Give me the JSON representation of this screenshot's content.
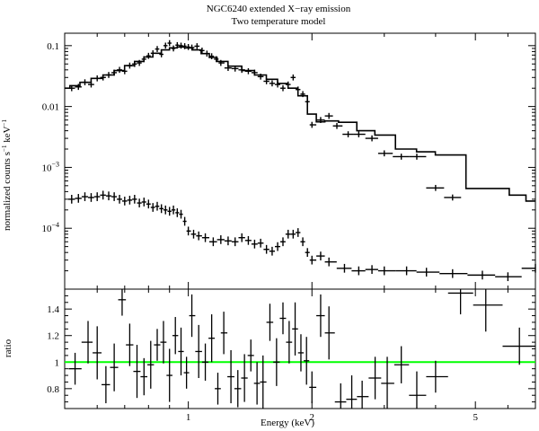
{
  "chart_data": {
    "type": "scatter",
    "title": "NGC6240 extended X−ray emission",
    "subtitle": "Two temperature model",
    "xlabel": "Energy (keV)",
    "x_scale": "log",
    "xlim": [
      0.5,
      7.0
    ],
    "x_ticks": [
      1,
      2,
      5
    ],
    "x_tick_labels": [
      "1",
      "2",
      "5"
    ],
    "grid": false,
    "top_panel": {
      "ylabel_parts": [
        "normalized counts s",
        "−1",
        " keV",
        "−1"
      ],
      "y_scale": "log",
      "ylim": [
        1e-05,
        0.16
      ],
      "y_tick_labels": [
        {
          "value": 0.1,
          "base": "0.1",
          "exp": ""
        },
        {
          "value": 0.01,
          "base": "0.01",
          "exp": ""
        },
        {
          "value": 0.001,
          "base": "10",
          "exp": "−3"
        },
        {
          "value": 0.0001,
          "base": "10",
          "exp": "−4"
        }
      ],
      "series": [
        {
          "kind": "data",
          "x": [
            0.52,
            0.54,
            0.56,
            0.58,
            0.6,
            0.62,
            0.64,
            0.66,
            0.68,
            0.7,
            0.72,
            0.74,
            0.76,
            0.78,
            0.8,
            0.82,
            0.84,
            0.86,
            0.88,
            0.9,
            0.92,
            0.94,
            0.96,
            0.98,
            1.0,
            1.02,
            1.05,
            1.08,
            1.11,
            1.14,
            1.17,
            1.2,
            1.25,
            1.3,
            1.35,
            1.4,
            1.45,
            1.5,
            1.55,
            1.6,
            1.65,
            1.7,
            1.75,
            1.8,
            1.85,
            1.9,
            1.95,
            2.0,
            2.1,
            2.2,
            2.3,
            2.45,
            2.6,
            2.8,
            3.0,
            3.3,
            3.6,
            4.0,
            4.4
          ],
          "y": [
            0.02,
            0.021,
            0.025,
            0.023,
            0.029,
            0.03,
            0.033,
            0.036,
            0.04,
            0.038,
            0.047,
            0.05,
            0.052,
            0.06,
            0.068,
            0.075,
            0.088,
            0.072,
            0.1,
            0.11,
            0.09,
            0.102,
            0.1,
            0.098,
            0.095,
            0.093,
            0.098,
            0.083,
            0.074,
            0.067,
            0.06,
            0.052,
            0.043,
            0.042,
            0.04,
            0.038,
            0.036,
            0.031,
            0.026,
            0.024,
            0.023,
            0.02,
            0.023,
            0.03,
            0.019,
            0.016,
            0.012,
            0.005,
            0.006,
            0.007,
            0.0048,
            0.0035,
            0.0035,
            0.003,
            0.0017,
            0.0015,
            0.0015,
            0.00046,
            0.00032
          ]
        },
        {
          "kind": "model",
          "x": [
            0.5,
            0.53,
            0.56,
            0.6,
            0.64,
            0.68,
            0.72,
            0.76,
            0.8,
            0.84,
            0.88,
            0.92,
            0.96,
            1.0,
            1.05,
            1.1,
            1.15,
            1.2,
            1.3,
            1.4,
            1.5,
            1.6,
            1.7,
            1.8,
            1.9,
            2.0,
            2.1,
            2.2,
            2.45,
            2.7,
            3.0,
            3.4,
            3.8,
            4.2,
            4.5,
            5.0,
            5.8,
            6.3,
            7.0
          ],
          "y": [
            0.02,
            0.022,
            0.025,
            0.029,
            0.033,
            0.039,
            0.047,
            0.055,
            0.065,
            0.075,
            0.085,
            0.092,
            0.095,
            0.092,
            0.085,
            0.074,
            0.064,
            0.055,
            0.046,
            0.039,
            0.033,
            0.028,
            0.024,
            0.02,
            0.015,
            0.0075,
            0.0056,
            0.0058,
            0.0055,
            0.004,
            0.0034,
            0.002,
            0.0018,
            0.0016,
            0.0016,
            0.00045,
            0.00045,
            0.00035,
            0.00028
          ]
        },
        {
          "kind": "background",
          "x": [
            0.52,
            0.54,
            0.56,
            0.58,
            0.6,
            0.62,
            0.64,
            0.66,
            0.68,
            0.7,
            0.72,
            0.74,
            0.76,
            0.78,
            0.8,
            0.82,
            0.84,
            0.86,
            0.88,
            0.9,
            0.92,
            0.94,
            0.96,
            0.98,
            1.0,
            1.03,
            1.06,
            1.1,
            1.15,
            1.2,
            1.25,
            1.3,
            1.35,
            1.4,
            1.45,
            1.5,
            1.55,
            1.6,
            1.65,
            1.7,
            1.75,
            1.8,
            1.85,
            1.9,
            1.95,
            2.0,
            2.1,
            2.2,
            2.4,
            2.6,
            2.8,
            3.0,
            3.4,
            3.8,
            4.4,
            5.2,
            6.0,
            7.0
          ],
          "y": [
            0.0003,
            0.00031,
            0.00033,
            0.00032,
            0.00033,
            0.00035,
            0.00034,
            0.00033,
            0.0003,
            0.00028,
            0.00029,
            0.0003,
            0.00026,
            0.00027,
            0.00025,
            0.00022,
            0.00023,
            0.00021,
            0.0002,
            0.00019,
            0.0002,
            0.00018,
            0.00017,
            0.00013,
            9e-05,
            8e-05,
            7.5e-05,
            7e-05,
            6e-05,
            6.5e-05,
            6.2e-05,
            6e-05,
            7e-05,
            6.3e-05,
            5.5e-05,
            5.7e-05,
            4.5e-05,
            4.2e-05,
            5e-05,
            6e-05,
            8e-05,
            8e-05,
            8.5e-05,
            6e-05,
            4e-05,
            3e-05,
            3.5e-05,
            2.8e-05,
            2.2e-05,
            2e-05,
            2.1e-05,
            2e-05,
            2e-05,
            1.9e-05,
            1.8e-05,
            1.7e-05,
            1.6e-05,
            2.2e-05
          ]
        }
      ]
    },
    "bottom_panel": {
      "ylabel": "ratio",
      "ylim": [
        0.65,
        1.55
      ],
      "y_ticks": [
        0.8,
        1.0,
        1.2,
        1.4
      ],
      "y_tick_labels": [
        "0.8",
        "1",
        "1.2",
        "1.4"
      ],
      "reference_line": {
        "y": 1.0,
        "color": "#00ff00"
      },
      "series": [
        {
          "kind": "ratio",
          "x": [
            0.53,
            0.57,
            0.6,
            0.63,
            0.66,
            0.69,
            0.72,
            0.75,
            0.78,
            0.81,
            0.84,
            0.87,
            0.9,
            0.93,
            0.96,
            0.99,
            1.02,
            1.06,
            1.1,
            1.14,
            1.18,
            1.22,
            1.27,
            1.32,
            1.37,
            1.42,
            1.47,
            1.52,
            1.58,
            1.64,
            1.7,
            1.76,
            1.82,
            1.88,
            1.94,
            2.0,
            2.1,
            2.2,
            2.35,
            2.5,
            2.65,
            2.85,
            3.05,
            3.3,
            3.6,
            4.0,
            4.6,
            5.3,
            6.4
          ],
          "y": [
            0.95,
            1.15,
            1.07,
            0.83,
            0.96,
            1.47,
            1.13,
            0.93,
            0.89,
            0.98,
            1.13,
            1.15,
            0.9,
            1.2,
            1.08,
            0.92,
            1.35,
            1.08,
            1.0,
            1.18,
            0.8,
            1.22,
            0.89,
            0.8,
            0.88,
            1.05,
            0.84,
            0.85,
            1.3,
            1.0,
            1.33,
            1.15,
            1.25,
            1.07,
            1.01,
            0.81,
            1.35,
            1.22,
            0.7,
            0.72,
            0.74,
            0.88,
            0.84,
            0.98,
            0.75,
            0.89,
            1.52,
            1.43,
            1.12
          ]
        }
      ]
    }
  }
}
